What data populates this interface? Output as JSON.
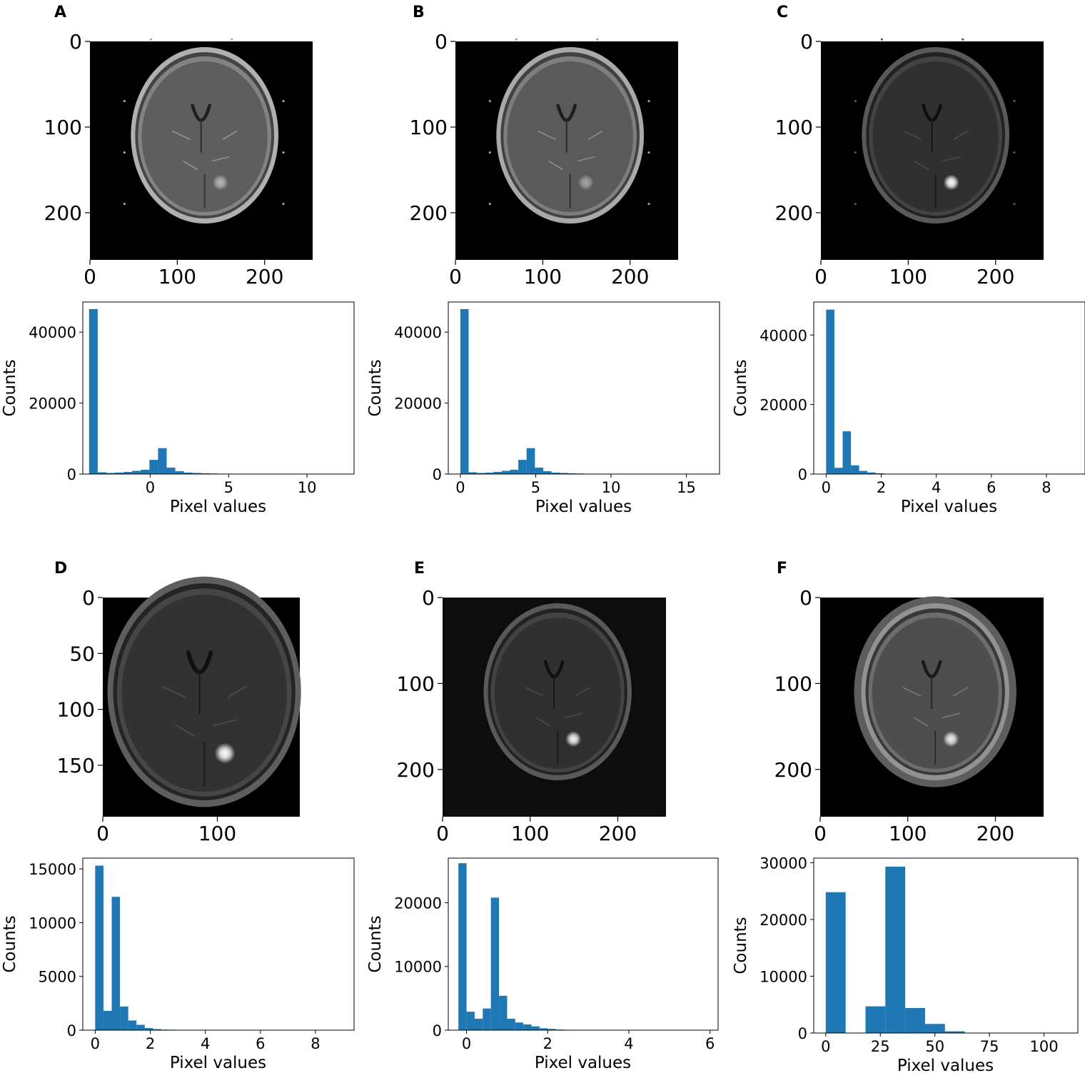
{
  "figure": {
    "panel_letters": [
      "A",
      "B",
      "C",
      "D",
      "E",
      "F"
    ],
    "image_label": "axial brain MRI slice (grayscale) with bright lesion",
    "colors": {
      "bar": "#1f77b4",
      "axis": "#000000",
      "image_bg": "#000000"
    }
  },
  "chart_data": [
    {
      "panel": "A",
      "type": "image",
      "colormap": "gray",
      "xticks": [
        0,
        100,
        200
      ],
      "yticks": [
        0,
        100,
        200
      ],
      "xlim": [
        0,
        255
      ],
      "ylim": [
        255,
        0
      ]
    },
    {
      "panel": "A",
      "type": "bar",
      "title": "",
      "xlabel": "Pixel values",
      "ylabel": "Counts",
      "xticks": [
        0,
        5,
        10
      ],
      "yticks": [
        0,
        20000,
        40000
      ],
      "xlim": [
        -4.3,
        13
      ],
      "ylim": [
        0,
        48500
      ],
      "bin_start": -3.9,
      "bin_width": 0.55,
      "values": [
        46500,
        500,
        300,
        400,
        600,
        900,
        1200,
        4000,
        7300,
        1800,
        800,
        400,
        300,
        200,
        150,
        100,
        80,
        60,
        50,
        40,
        30,
        25,
        20,
        15,
        10,
        8,
        6,
        5,
        4,
        3
      ]
    },
    {
      "panel": "B",
      "type": "image",
      "colormap": "gray",
      "xticks": [
        0,
        100,
        200
      ],
      "yticks": [
        0,
        100,
        200
      ],
      "xlim": [
        0,
        255
      ],
      "ylim": [
        255,
        0
      ]
    },
    {
      "panel": "B",
      "type": "bar",
      "title": "",
      "xlabel": "Pixel values",
      "ylabel": "Counts",
      "xticks": [
        0,
        5,
        10,
        15
      ],
      "yticks": [
        0,
        20000,
        40000
      ],
      "xlim": [
        -0.8,
        17.2
      ],
      "ylim": [
        0,
        48500
      ],
      "bin_start": 0,
      "bin_width": 0.55,
      "values": [
        46500,
        500,
        300,
        400,
        600,
        900,
        1200,
        4000,
        7300,
        1800,
        800,
        400,
        300,
        200,
        150,
        100,
        80,
        60,
        50,
        40,
        30,
        25,
        20,
        15,
        10,
        8,
        6,
        5,
        4,
        3
      ]
    },
    {
      "panel": "C",
      "type": "image",
      "colormap": "gray",
      "xticks": [
        0,
        100,
        200
      ],
      "yticks": [
        0,
        100,
        200
      ],
      "xlim": [
        0,
        255
      ],
      "ylim": [
        255,
        0
      ]
    },
    {
      "panel": "C",
      "type": "bar",
      "title": "",
      "xlabel": "Pixel values",
      "ylabel": "Counts",
      "xticks": [
        0,
        2,
        4,
        6,
        8
      ],
      "yticks": [
        0,
        20000,
        40000
      ],
      "xlim": [
        -0.45,
        9.4
      ],
      "ylim": [
        0,
        49500
      ],
      "bin_start": 0,
      "bin_width": 0.3,
      "values": [
        47300,
        1800,
        12300,
        2500,
        900,
        450,
        200,
        100,
        60,
        40,
        30,
        20,
        15,
        10,
        8,
        6,
        5,
        4,
        3,
        3,
        2,
        2,
        2,
        1,
        1,
        1,
        1,
        1,
        1,
        1
      ]
    },
    {
      "panel": "D",
      "type": "image",
      "colormap": "gray",
      "xticks": [
        0,
        100
      ],
      "yticks": [
        0,
        50,
        100,
        150
      ],
      "xlim": [
        0,
        172
      ],
      "ylim": [
        196,
        0
      ]
    },
    {
      "panel": "D",
      "type": "bar",
      "title": "",
      "xlabel": "Pixel values",
      "ylabel": "Counts",
      "xticks": [
        0,
        2,
        4,
        6,
        8
      ],
      "yticks": [
        0,
        5000,
        10000,
        15000
      ],
      "xlim": [
        -0.45,
        9.4
      ],
      "ylim": [
        0,
        16000
      ],
      "bin_start": 0,
      "bin_width": 0.3,
      "values": [
        15300,
        1800,
        12400,
        2200,
        900,
        500,
        200,
        100,
        50,
        40,
        30,
        20,
        15,
        10,
        8,
        6,
        5,
        4,
        3,
        3,
        2,
        2,
        2,
        1,
        1,
        1,
        1,
        1,
        1,
        1
      ]
    },
    {
      "panel": "E",
      "type": "image",
      "colormap": "gray",
      "xticks": [
        0,
        100,
        200
      ],
      "yticks": [
        0,
        100,
        200
      ],
      "xlim": [
        0,
        255
      ],
      "ylim": [
        255,
        0
      ]
    },
    {
      "panel": "E",
      "type": "bar",
      "title": "",
      "xlabel": "Pixel values",
      "ylabel": "Counts",
      "xticks": [
        0,
        2,
        4,
        6
      ],
      "yticks": [
        0,
        10000,
        20000
      ],
      "xlim": [
        -0.45,
        6.2
      ],
      "ylim": [
        0,
        27000
      ],
      "bin_start": -0.2,
      "bin_width": 0.2,
      "values": [
        26200,
        2900,
        1800,
        3400,
        20800,
        5400,
        1800,
        1200,
        900,
        600,
        300,
        200,
        100,
        60,
        40,
        30,
        20,
        15,
        10,
        8,
        6,
        5,
        4,
        3,
        3,
        2,
        2,
        1,
        1,
        1
      ]
    },
    {
      "panel": "F",
      "type": "image",
      "colormap": "gray",
      "xticks": [
        0,
        100,
        200
      ],
      "yticks": [
        0,
        100,
        200
      ],
      "xlim": [
        0,
        255
      ],
      "ylim": [
        255,
        0
      ]
    },
    {
      "panel": "F",
      "type": "bar",
      "title": "",
      "xlabel": "Pixel values",
      "ylabel": "Counts",
      "xticks": [
        0,
        25,
        50,
        75,
        100
      ],
      "yticks": [
        0,
        10000,
        20000,
        30000
      ],
      "xlim": [
        -5.5,
        115.5
      ],
      "ylim": [
        0,
        30800
      ],
      "bin_start": 0,
      "bin_width": 9.1,
      "values": [
        24800,
        0,
        4700,
        29300,
        4400,
        1600,
        300,
        60,
        20,
        10,
        5,
        2
      ]
    }
  ]
}
